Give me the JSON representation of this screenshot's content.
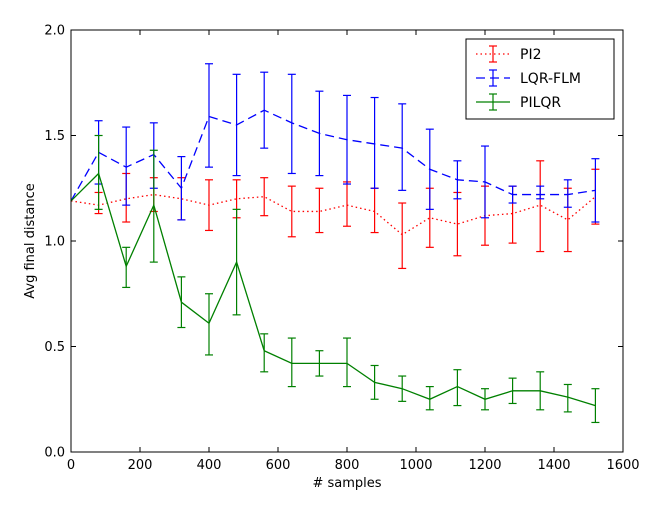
{
  "chart_data": {
    "type": "line",
    "xlabel": "# samples",
    "ylabel": "Avg final distance",
    "xlim": [
      0,
      1600
    ],
    "ylim": [
      0.0,
      2.0
    ],
    "xticks": [
      0,
      200,
      400,
      600,
      800,
      1000,
      1200,
      1400,
      1600
    ],
    "yticks": [
      0.0,
      0.5,
      1.0,
      1.5,
      2.0
    ],
    "xtick_labels": [
      "0",
      "200",
      "400",
      "600",
      "800",
      "1000",
      "1200",
      "1400",
      "1600"
    ],
    "ytick_labels": [
      "0.0",
      "0.5",
      "1.0",
      "1.5",
      "2.0"
    ],
    "grid": false,
    "legend_position": "top-right",
    "x": [
      0,
      80,
      160,
      240,
      320,
      400,
      480,
      560,
      640,
      720,
      800,
      880,
      960,
      1040,
      1120,
      1200,
      1280,
      1360,
      1440,
      1520
    ],
    "series": [
      {
        "name": "PI2",
        "color": "#ff0000",
        "linestyle": "dotted",
        "values": [
          1.19,
          1.17,
          1.2,
          1.22,
          1.2,
          1.17,
          1.2,
          1.21,
          1.14,
          1.14,
          1.17,
          1.14,
          1.03,
          1.11,
          1.08,
          1.12,
          1.13,
          1.17,
          1.1,
          1.21
        ],
        "err_low": [
          null,
          1.13,
          1.09,
          1.14,
          1.1,
          1.05,
          1.11,
          1.12,
          1.02,
          1.04,
          1.07,
          1.04,
          0.87,
          0.97,
          0.93,
          0.98,
          0.99,
          0.95,
          0.95,
          1.08
        ],
        "err_high": [
          null,
          1.23,
          1.32,
          1.3,
          1.3,
          1.29,
          1.29,
          1.3,
          1.26,
          1.25,
          1.28,
          1.25,
          1.18,
          1.25,
          1.23,
          1.26,
          1.26,
          1.38,
          1.25,
          1.34
        ]
      },
      {
        "name": "LQR-FLM",
        "color": "#0000ff",
        "linestyle": "dashed",
        "values": [
          1.19,
          1.42,
          1.35,
          1.41,
          1.25,
          1.59,
          1.55,
          1.62,
          1.56,
          1.51,
          1.48,
          1.46,
          1.44,
          1.34,
          1.29,
          1.28,
          1.22,
          1.22,
          1.22,
          1.24
        ],
        "err_low": [
          null,
          1.27,
          1.17,
          1.25,
          1.1,
          1.35,
          1.31,
          1.44,
          1.32,
          1.31,
          1.27,
          1.25,
          1.24,
          1.15,
          1.2,
          1.11,
          1.18,
          1.2,
          1.16,
          1.09
        ],
        "err_high": [
          null,
          1.57,
          1.54,
          1.56,
          1.4,
          1.84,
          1.79,
          1.8,
          1.79,
          1.71,
          1.69,
          1.68,
          1.65,
          1.53,
          1.38,
          1.45,
          1.26,
          1.26,
          1.29,
          1.39
        ]
      },
      {
        "name": "PILQR",
        "color": "#008000",
        "linestyle": "solid",
        "values": [
          1.19,
          1.32,
          0.88,
          1.17,
          0.71,
          0.61,
          0.9,
          0.48,
          0.42,
          0.42,
          0.42,
          0.33,
          0.3,
          0.25,
          0.31,
          0.25,
          0.29,
          0.29,
          0.26,
          0.22
        ],
        "err_low": [
          null,
          1.15,
          0.78,
          0.9,
          0.59,
          0.46,
          0.65,
          0.38,
          0.31,
          0.36,
          0.31,
          0.25,
          0.24,
          0.2,
          0.22,
          0.2,
          0.23,
          0.2,
          0.19,
          0.14
        ],
        "err_high": [
          null,
          1.5,
          0.97,
          1.43,
          0.83,
          0.75,
          1.15,
          0.56,
          0.54,
          0.48,
          0.54,
          0.41,
          0.36,
          0.31,
          0.39,
          0.3,
          0.35,
          0.38,
          0.32,
          0.3
        ]
      }
    ]
  }
}
